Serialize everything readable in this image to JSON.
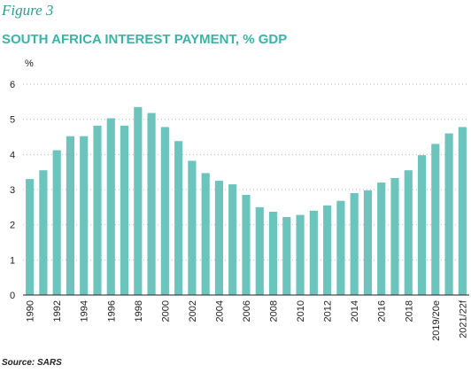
{
  "chart_data": {
    "type": "bar",
    "figure_label": "Figure 3",
    "title": "SOUTH AFRICA INTEREST PAYMENT, % GDP",
    "y_label": "%",
    "source": "Source: SARS",
    "categories": [
      "1990",
      null,
      "1992",
      null,
      "1994",
      null,
      "1996",
      null,
      "1998",
      null,
      "2000",
      null,
      "2002",
      null,
      "2004",
      null,
      "2006",
      null,
      "2008",
      null,
      "2010",
      null,
      "2012",
      null,
      "2014",
      null,
      "2016",
      null,
      "2018",
      null,
      "2019/20e",
      null,
      "2021/22f"
    ],
    "values": [
      3.3,
      3.55,
      4.12,
      4.52,
      4.52,
      4.82,
      5.03,
      4.82,
      5.35,
      5.18,
      4.78,
      4.38,
      3.82,
      3.47,
      3.25,
      3.15,
      2.85,
      2.5,
      2.37,
      2.22,
      2.28,
      2.4,
      2.55,
      2.68,
      2.9,
      2.98,
      3.2,
      3.33,
      3.55,
      3.98,
      4.3,
      4.6,
      4.78
    ],
    "color": "#6cc5bd",
    "ylim": [
      0,
      6
    ],
    "yticks": [
      0,
      1,
      2,
      3,
      4,
      5,
      6
    ],
    "grid": true
  }
}
